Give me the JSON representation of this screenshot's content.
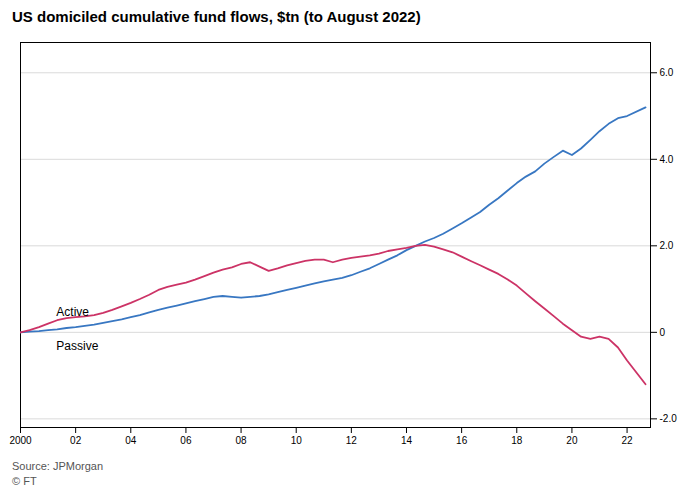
{
  "chart_data": {
    "type": "line",
    "title": "US domiciled cumulative fund flows, $tn (to August 2022)",
    "caption": "Source: JPMorgan\n© FT",
    "x": [
      2000,
      2000.33,
      2000.67,
      2001,
      2001.33,
      2001.67,
      2002,
      2002.33,
      2002.67,
      2003,
      2003.33,
      2003.67,
      2004,
      2004.33,
      2004.67,
      2005,
      2005.33,
      2005.67,
      2006,
      2006.33,
      2006.67,
      2007,
      2007.33,
      2007.67,
      2008,
      2008.33,
      2008.67,
      2009,
      2009.33,
      2009.67,
      2010,
      2010.33,
      2010.67,
      2011,
      2011.33,
      2011.67,
      2012,
      2012.33,
      2012.67,
      2013,
      2013.33,
      2013.67,
      2014,
      2014.33,
      2014.67,
      2015,
      2015.33,
      2015.67,
      2016,
      2016.33,
      2016.67,
      2017,
      2017.33,
      2017.67,
      2018,
      2018.33,
      2018.67,
      2019,
      2019.33,
      2019.67,
      2020,
      2020.33,
      2020.67,
      2021,
      2021.33,
      2021.67,
      2022,
      2022.67
    ],
    "series": [
      {
        "name": "Passive",
        "color": "#3877c2",
        "values": [
          0.0,
          0.015,
          0.03,
          0.05,
          0.07,
          0.1,
          0.12,
          0.15,
          0.18,
          0.22,
          0.26,
          0.3,
          0.35,
          0.4,
          0.46,
          0.52,
          0.57,
          0.62,
          0.67,
          0.72,
          0.77,
          0.82,
          0.84,
          0.82,
          0.8,
          0.82,
          0.84,
          0.88,
          0.93,
          0.98,
          1.03,
          1.08,
          1.13,
          1.18,
          1.22,
          1.26,
          1.32,
          1.4,
          1.48,
          1.58,
          1.68,
          1.78,
          1.9,
          2.0,
          2.1,
          2.18,
          2.28,
          2.4,
          2.52,
          2.65,
          2.78,
          2.95,
          3.1,
          3.28,
          3.45,
          3.6,
          3.72,
          3.9,
          4.05,
          4.2,
          4.1,
          4.25,
          4.45,
          4.65,
          4.82,
          4.95,
          5.0,
          5.2
        ]
      },
      {
        "name": "Active",
        "color": "#cc3366",
        "values": [
          0.0,
          0.05,
          0.12,
          0.2,
          0.28,
          0.33,
          0.35,
          0.37,
          0.4,
          0.45,
          0.52,
          0.6,
          0.68,
          0.77,
          0.87,
          0.98,
          1.05,
          1.1,
          1.15,
          1.22,
          1.3,
          1.38,
          1.45,
          1.5,
          1.58,
          1.62,
          1.52,
          1.42,
          1.48,
          1.55,
          1.6,
          1.65,
          1.68,
          1.68,
          1.62,
          1.68,
          1.72,
          1.75,
          1.78,
          1.82,
          1.88,
          1.92,
          1.95,
          2.0,
          2.02,
          1.98,
          1.92,
          1.85,
          1.75,
          1.65,
          1.55,
          1.45,
          1.35,
          1.22,
          1.08,
          0.9,
          0.72,
          0.55,
          0.38,
          0.2,
          0.05,
          -0.1,
          -0.15,
          -0.1,
          -0.15,
          -0.35,
          -0.65,
          -1.2
        ]
      }
    ],
    "annotations": [
      {
        "text": "Active",
        "x": 2001.3,
        "y": 0.38
      },
      {
        "text": "Passive",
        "x": 2001.3,
        "y": -0.22
      }
    ],
    "xlim": [
      2000,
      2022.85
    ],
    "ylim": [
      -2.2,
      6.7
    ],
    "xticks": [
      2000,
      {
        "value": 2002,
        "label": "02"
      },
      {
        "value": 2004,
        "label": "04"
      },
      {
        "value": 2006,
        "label": "06"
      },
      {
        "value": 2008,
        "label": "08"
      },
      {
        "value": 2010,
        "label": "10"
      },
      {
        "value": 2012,
        "label": "12"
      },
      {
        "value": 2014,
        "label": "14"
      },
      {
        "value": 2016,
        "label": "16"
      },
      {
        "value": 2018,
        "label": "18"
      },
      {
        "value": 2020,
        "label": "20"
      },
      {
        "value": 2022,
        "label": "22"
      }
    ],
    "yticks": [
      {
        "value": -2.0,
        "label": "-2.0"
      },
      0,
      {
        "value": 2.0,
        "label": "2.0"
      },
      {
        "value": 4.0,
        "label": "4.0"
      },
      {
        "value": 6.0,
        "label": "6.0"
      }
    ],
    "grid": "y"
  }
}
